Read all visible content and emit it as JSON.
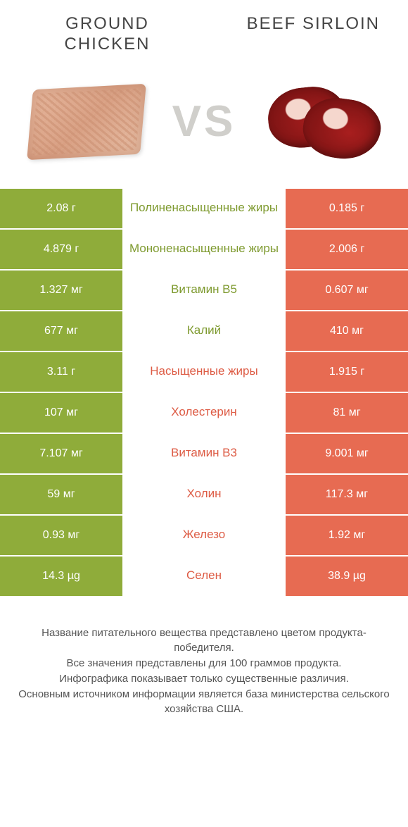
{
  "titles": {
    "left": "GROUND\nCHICKEN",
    "right": "BEEF SIRLOIN"
  },
  "vs_label": "VS",
  "colors": {
    "left": "#8fac3a",
    "right": "#e76b52",
    "left_text": "#7e9a2f",
    "right_text": "#dd5b44",
    "row_border": "#ffffff"
  },
  "rows": [
    {
      "left": "2.08 г",
      "label": "Полиненасыщенные жиры",
      "right": "0.185 г",
      "winner": "left"
    },
    {
      "left": "4.879 г",
      "label": "Мононенасыщенные жиры",
      "right": "2.006 г",
      "winner": "left"
    },
    {
      "left": "1.327 мг",
      "label": "Витамин B5",
      "right": "0.607 мг",
      "winner": "left"
    },
    {
      "left": "677 мг",
      "label": "Калий",
      "right": "410 мг",
      "winner": "left"
    },
    {
      "left": "3.11 г",
      "label": "Насыщенные жиры",
      "right": "1.915 г",
      "winner": "right"
    },
    {
      "left": "107 мг",
      "label": "Холестерин",
      "right": "81 мг",
      "winner": "right"
    },
    {
      "left": "7.107 мг",
      "label": "Витамин B3",
      "right": "9.001 мг",
      "winner": "right"
    },
    {
      "left": "59 мг",
      "label": "Холин",
      "right": "117.3 мг",
      "winner": "right"
    },
    {
      "left": "0.93 мг",
      "label": "Железо",
      "right": "1.92 мг",
      "winner": "right"
    },
    {
      "left": "14.3 µg",
      "label": "Селен",
      "right": "38.9 µg",
      "winner": "right"
    }
  ],
  "footer_lines": [
    "Название питательного вещества представлено цветом продукта-победителя.",
    "Все значения представлены для 100 граммов продукта.",
    "Инфографика показывает только существенные различия.",
    "Основным источником информации является база министерства сельского хозяйства США."
  ]
}
